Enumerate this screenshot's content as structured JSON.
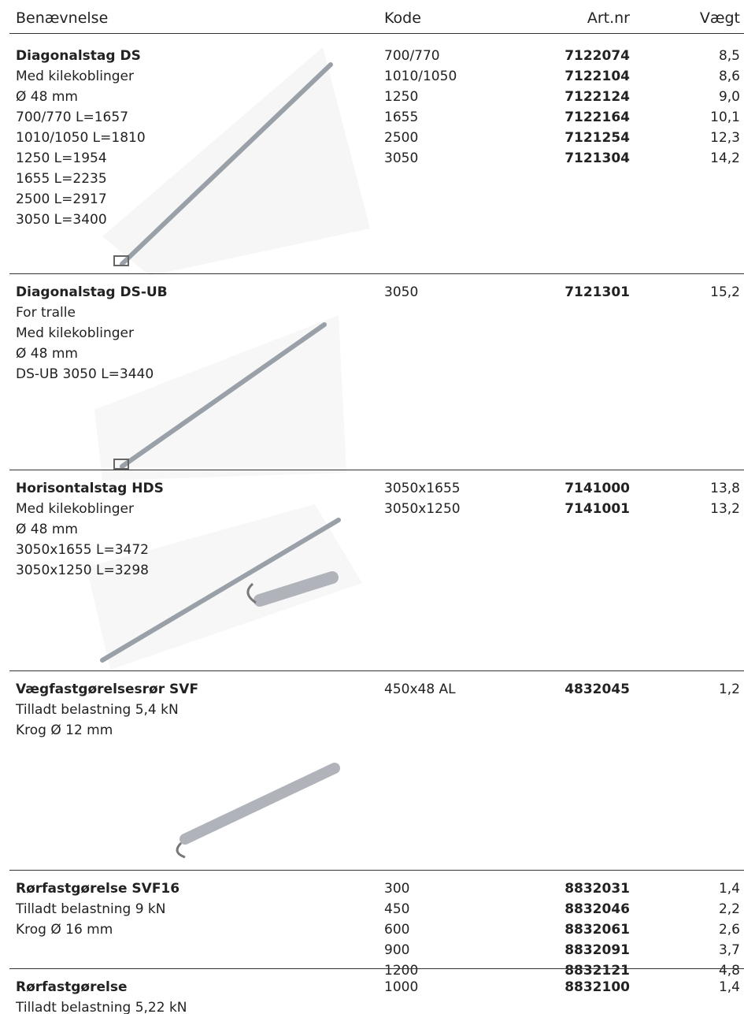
{
  "header": {
    "name": "Benævnelse",
    "code": "Kode",
    "artnr": "Art.nr",
    "weight": "Vægt"
  },
  "sections": [
    {
      "title": "Diagonalstag DS",
      "lines": [
        "Med kilekoblinger",
        "Ø 48 mm",
        "700/770 L=1657",
        "1010/1050 L=1810",
        "1250 L=1954",
        "1655 L=2235",
        "2500 L=2917",
        "3050 L=3400"
      ],
      "rows": [
        [
          "700/770",
          "7122074",
          "8,5"
        ],
        [
          "1010/1050",
          "7122104",
          "8,6"
        ],
        [
          "1250",
          "7122124",
          "9,0"
        ],
        [
          "1655",
          "7122164",
          "10,1"
        ],
        [
          "2500",
          "7121254",
          "12,3"
        ],
        [
          "3050",
          "7121304",
          "14,2"
        ]
      ]
    },
    {
      "title": "Diagonalstag DS-UB",
      "lines": [
        "For tralle",
        "Med kilekoblinger",
        "Ø 48 mm",
        "DS-UB 3050 L=3440"
      ],
      "rows": [
        [
          "3050",
          "7121301",
          "15,2"
        ]
      ]
    },
    {
      "title": "Horisontalstag HDS",
      "lines": [
        "Med kilekoblinger",
        "Ø 48 mm",
        "3050x1655 L=3472",
        "3050x1250 L=3298"
      ],
      "rows": [
        [
          "3050x1655",
          "7141000",
          "13,8"
        ],
        [
          "3050x1250",
          "7141001",
          "13,2"
        ]
      ]
    },
    {
      "title": "Vægfastgørelsesrør SVF",
      "lines": [
        "Tilladt belastning 5,4 kN",
        "Krog Ø 12 mm"
      ],
      "rows": [
        [
          "450x48 AL",
          "4832045",
          "1,2"
        ]
      ]
    },
    {
      "title": "Rørfastgørelse SVF16",
      "lines": [
        "Tilladt belastning 9 kN",
        "Krog Ø 16 mm"
      ],
      "rows": [
        [
          "300",
          "8832031",
          "1,4"
        ],
        [
          "450",
          "8832046",
          "2,2"
        ],
        [
          "600",
          "8832061",
          "2,6"
        ],
        [
          "900",
          "8832091",
          "3,7"
        ],
        [
          "1200",
          "8832121",
          "4,8"
        ]
      ]
    },
    {
      "title": "Rørfastgørelse",
      "lines": [
        "Tilladt belastning 5,22 kN"
      ],
      "rows": [
        [
          "1000",
          "8832100",
          "1,4"
        ]
      ]
    }
  ]
}
